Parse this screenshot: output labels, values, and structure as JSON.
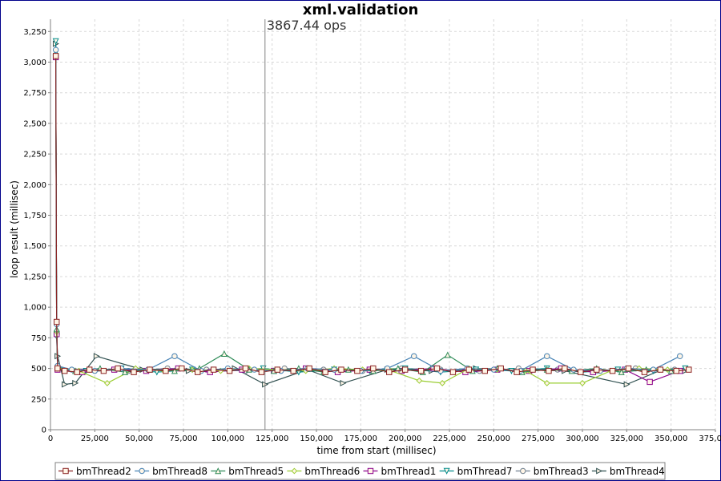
{
  "chart_data": {
    "type": "line",
    "title": "xml.validation",
    "xlabel": "time from start (millisec)",
    "ylabel": "loop result (millisec)",
    "xlim": [
      0,
      375000
    ],
    "ylim": [
      0,
      3350
    ],
    "x_ticks": [
      0,
      25000,
      50000,
      75000,
      100000,
      125000,
      150000,
      175000,
      200000,
      225000,
      250000,
      275000,
      300000,
      325000,
      350000,
      375000
    ],
    "x_tick_labels": [
      "0",
      "25,000",
      "50,000",
      "75,000",
      "100,000",
      "125,000",
      "150,000",
      "175,000",
      "200,000",
      "225,000",
      "250,000",
      "275,000",
      "300,000",
      "325,000",
      "350,000",
      "375,000"
    ],
    "y_ticks": [
      0,
      250,
      500,
      750,
      1000,
      1250,
      1500,
      1750,
      2000,
      2250,
      2500,
      2750,
      3000,
      3250
    ],
    "y_tick_labels": [
      "0",
      "250",
      "500",
      "750",
      "1,000",
      "1,250",
      "1,500",
      "1,750",
      "2,000",
      "2,250",
      "2,500",
      "2,750",
      "3,000",
      "3,250"
    ],
    "grid": true,
    "annotation": {
      "text": "3867.44 ops",
      "x": 121000
    },
    "legend_position": "bottom",
    "series": [
      {
        "name": "bmThread2",
        "color": "#8b2323",
        "marker": "square",
        "x": [
          3000,
          3500,
          4000,
          8000,
          15000,
          22000,
          30000,
          38000,
          47000,
          56000,
          65000,
          74000,
          83000,
          92000,
          101000,
          110000,
          119000,
          128000,
          137000,
          146000,
          155000,
          164000,
          173000,
          182000,
          191000,
          200000,
          209000,
          218000,
          227000,
          236000,
          245000,
          254000,
          263000,
          272000,
          281000,
          290000,
          299000,
          308000,
          317000,
          326000,
          335000,
          344000,
          353000,
          360000
        ],
        "y": [
          3050,
          880,
          500,
          480,
          470,
          490,
          480,
          500,
          470,
          490,
          480,
          500,
          470,
          490,
          480,
          500,
          470,
          490,
          480,
          500,
          470,
          490,
          480,
          500,
          470,
          490,
          480,
          500,
          470,
          490,
          480,
          500,
          470,
          490,
          480,
          500,
          470,
          490,
          480,
          500,
          470,
          490,
          480,
          490
        ]
      },
      {
        "name": "bmThread8",
        "color": "#4682b4",
        "marker": "circle",
        "x": [
          3000,
          3500,
          4000,
          12000,
          25000,
          40000,
          55000,
          70000,
          85000,
          100000,
          115000,
          130000,
          145000,
          160000,
          175000,
          190000,
          205000,
          220000,
          235000,
          250000,
          265000,
          280000,
          295000,
          310000,
          325000,
          340000,
          355000
        ],
        "y": [
          3100,
          860,
          520,
          490,
          480,
          500,
          490,
          600,
          480,
          500,
          490,
          480,
          500,
          490,
          480,
          500,
          600,
          480,
          500,
          490,
          480,
          600,
          490,
          480,
          500,
          490,
          600
        ]
      },
      {
        "name": "bmThread5",
        "color": "#2e8b57",
        "marker": "triangle-up",
        "x": [
          3000,
          3500,
          4000,
          14000,
          28000,
          42000,
          56000,
          70000,
          84000,
          98000,
          112000,
          126000,
          140000,
          154000,
          168000,
          182000,
          196000,
          210000,
          224000,
          238000,
          252000,
          266000,
          280000,
          294000,
          308000,
          322000,
          336000,
          350000
        ],
        "y": [
          3080,
          820,
          510,
          480,
          500,
          470,
          490,
          480,
          500,
          620,
          490,
          480,
          500,
          470,
          490,
          480,
          500,
          470,
          610,
          480,
          500,
          470,
          490,
          480,
          500,
          470,
          490,
          480
        ]
      },
      {
        "name": "bmThread6",
        "color": "#9acd32",
        "marker": "diamond",
        "x": [
          3000,
          3500,
          4000,
          16000,
          32000,
          48000,
          64000,
          80000,
          96000,
          112000,
          128000,
          144000,
          160000,
          176000,
          192000,
          208000,
          221000,
          236000,
          252000,
          268000,
          280000,
          300000,
          316000,
          332000,
          348000
        ],
        "y": [
          3060,
          800,
          500,
          480,
          380,
          500,
          480,
          490,
          480,
          500,
          490,
          480,
          500,
          490,
          480,
          400,
          380,
          500,
          490,
          480,
          380,
          380,
          480,
          500,
          490
        ]
      },
      {
        "name": "bmThread1",
        "color": "#8b008b",
        "marker": "square",
        "x": [
          3000,
          3500,
          4000,
          18000,
          36000,
          54000,
          72000,
          90000,
          108000,
          126000,
          144000,
          162000,
          180000,
          198000,
          216000,
          234000,
          252000,
          270000,
          288000,
          306000,
          324000,
          338000,
          355000
        ],
        "y": [
          3040,
          780,
          490,
          470,
          490,
          480,
          500,
          470,
          490,
          480,
          500,
          470,
          490,
          480,
          500,
          470,
          490,
          480,
          500,
          470,
          490,
          390,
          480
        ]
      },
      {
        "name": "bmThread7",
        "color": "#008b8b",
        "marker": "triangle-down",
        "x": [
          3000,
          3500,
          4000,
          20000,
          40000,
          60000,
          80000,
          100000,
          120000,
          140000,
          160000,
          180000,
          200000,
          220000,
          240000,
          260000,
          280000,
          300000,
          320000,
          340000,
          358000
        ],
        "y": [
          3170,
          760,
          500,
          480,
          500,
          470,
          490,
          480,
          500,
          470,
          490,
          480,
          500,
          470,
          490,
          480,
          500,
          470,
          490,
          480,
          500
        ]
      },
      {
        "name": "bmThread3",
        "color": "#708090",
        "marker": "circle",
        "x": [
          3000,
          3500,
          4000,
          22000,
          44000,
          66000,
          88000,
          110000,
          132000,
          154000,
          176000,
          198000,
          220000,
          242000,
          264000,
          286000,
          308000,
          330000,
          352000
        ],
        "y": [
          3060,
          800,
          500,
          490,
          480,
          500,
          490,
          480,
          500,
          490,
          480,
          500,
          490,
          480,
          500,
          490,
          480,
          500,
          490
        ]
      },
      {
        "name": "bmThread4",
        "color": "#2f4f4f",
        "marker": "triangle-right",
        "x": [
          3000,
          3500,
          4000,
          8000,
          14000,
          26000,
          52000,
          78000,
          104000,
          121000,
          145000,
          165000,
          190000,
          215000,
          240000,
          265000,
          290000,
          325000,
          345000,
          358000
        ],
        "y": [
          3150,
          780,
          600,
          370,
          380,
          600,
          490,
          480,
          500,
          370,
          490,
          380,
          490,
          480,
          500,
          490,
          480,
          370,
          490,
          480
        ]
      }
    ]
  }
}
